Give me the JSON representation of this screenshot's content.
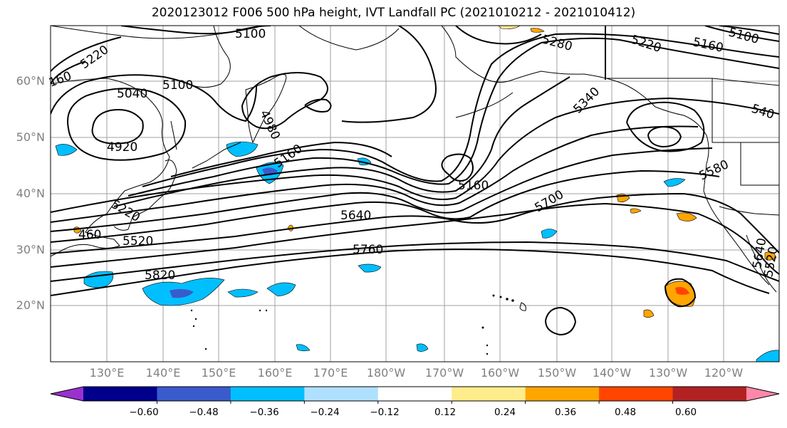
{
  "title": "2020123012 F006 500 hPa height, IVT Landfall PC (2021010212 - 2021010412)",
  "lat_labels": [
    "60°N",
    "50°N",
    "40°N",
    "30°N",
    "20°N"
  ],
  "lon_labels": [
    "130°E",
    "140°E",
    "150°E",
    "160°E",
    "170°E",
    "180°W",
    "170°W",
    "160°W",
    "150°W",
    "140°W",
    "130°W",
    "120°W"
  ],
  "contour_labels": [
    "5100",
    "5220",
    "5280",
    "5220",
    "5160",
    "5100",
    "160",
    "5040",
    "5100",
    "4980",
    "5340",
    "540",
    "4920",
    "5160",
    "5160",
    "5580",
    "5220",
    "5700",
    "460",
    "5520",
    "5640",
    "5760",
    "5820",
    "5640",
    "5520"
  ],
  "colorbar": {
    "ticks": [
      "−0.60",
      "−0.48",
      "−0.36",
      "−0.24",
      "−0.12",
      "0.12",
      "0.24",
      "0.36",
      "0.48",
      "0.60"
    ],
    "colors": [
      "#9932cc",
      "#00008b",
      "#3a5bcc",
      "#00bfff",
      "#b0e0ff",
      "#ffffff",
      "#ffec8b",
      "#ffa500",
      "#ff4500",
      "#b22222",
      "#ff88aa"
    ]
  },
  "colors": {
    "contour": "#000000",
    "graticule": "#a0a0a0",
    "axis_label": "#808080"
  }
}
